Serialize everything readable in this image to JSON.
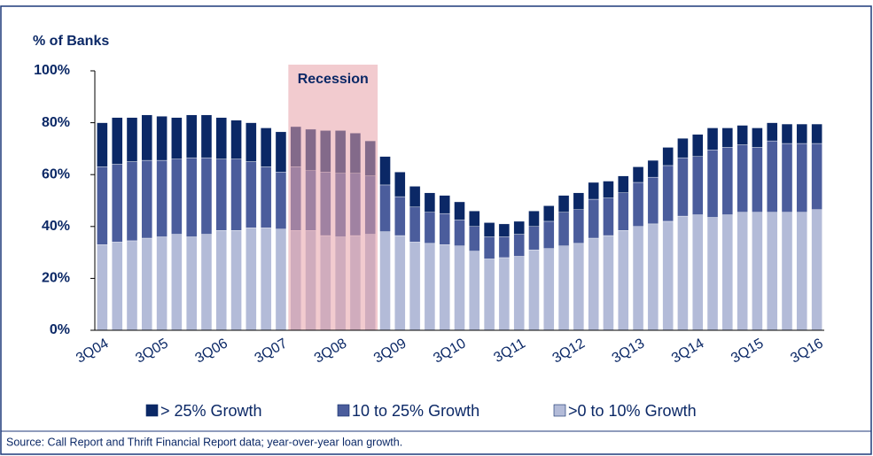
{
  "chart_data": {
    "type": "stacked_bar",
    "y_axis_label": "% of Banks",
    "source": "Source: Call Report and Thrift Financial Report data; year-over-year loan growth.",
    "categories": [
      "3Q04",
      null,
      null,
      null,
      "3Q05",
      null,
      null,
      null,
      "3Q06",
      null,
      null,
      null,
      "3Q07",
      null,
      null,
      null,
      "3Q08",
      null,
      null,
      null,
      "3Q09",
      null,
      null,
      null,
      "3Q10",
      null,
      null,
      null,
      "3Q11",
      null,
      null,
      null,
      "3Q12",
      null,
      null,
      null,
      "3Q13",
      null,
      null,
      null,
      "3Q14",
      null,
      null,
      null,
      "3Q15",
      null,
      null,
      null,
      "3Q16"
    ],
    "series": [
      {
        "name": ">0 to 10% Growth",
        "color": "#b3bbd8",
        "values": [
          33,
          34,
          34.5,
          35.5,
          36,
          37,
          36,
          37,
          38.5,
          38.5,
          39.5,
          39.5,
          39,
          38.5,
          38.5,
          36.5,
          36,
          36.5,
          37,
          38,
          36.5,
          34,
          33.5,
          33,
          32.5,
          30.5,
          27.5,
          28,
          28.5,
          31,
          31.5,
          32.5,
          33.5,
          35.5,
          36.5,
          38.5,
          40,
          41,
          42,
          44,
          44.5,
          43.5,
          44.5,
          45.5,
          45.5,
          45.5,
          45.5,
          45.5,
          46.5
        ]
      },
      {
        "name": "10 to 25% Growth",
        "color": "#4b5d9c",
        "values": [
          30,
          30,
          30.5,
          30,
          29.5,
          29,
          30.5,
          29.5,
          27.5,
          27.5,
          25.5,
          23.5,
          22,
          24.5,
          23,
          24.5,
          24.5,
          24,
          22.5,
          18,
          15,
          13.5,
          12,
          12,
          10,
          9.5,
          8.5,
          8,
          8.5,
          9,
          10.5,
          13,
          13,
          15,
          14.5,
          14.5,
          17,
          18,
          21.5,
          22.5,
          22.5,
          26,
          26,
          26,
          25,
          27.5,
          26.5,
          26.5,
          25.5
        ]
      },
      {
        "name": "> 25% Growth",
        "color": "#0b2866",
        "values": [
          17,
          18,
          17,
          17.5,
          17,
          16,
          16.5,
          16.5,
          16,
          15,
          15,
          15,
          15.5,
          15.5,
          16,
          16,
          16.5,
          15.5,
          13.5,
          11,
          9.5,
          8,
          7.5,
          7,
          7,
          6,
          5.5,
          5,
          5,
          6,
          6,
          6.5,
          6.5,
          6.5,
          6.5,
          6.5,
          6,
          6.5,
          7,
          7.5,
          8.5,
          8.5,
          7.5,
          7.5,
          7.5,
          7,
          7.5,
          7.5,
          7.5
        ]
      }
    ],
    "shade": {
      "label": "Recession",
      "start": 13,
      "end": 18,
      "color": "#e8a0a8"
    },
    "ylim": [
      0,
      100
    ],
    "yticks": [
      {
        "value": 0,
        "label": "0%"
      },
      {
        "value": 20,
        "label": "20%"
      },
      {
        "value": 40,
        "label": "40%"
      },
      {
        "value": 60,
        "label": "60%"
      },
      {
        "value": 80,
        "label": "80%"
      },
      {
        "value": 100,
        "label": "100%"
      }
    ]
  }
}
